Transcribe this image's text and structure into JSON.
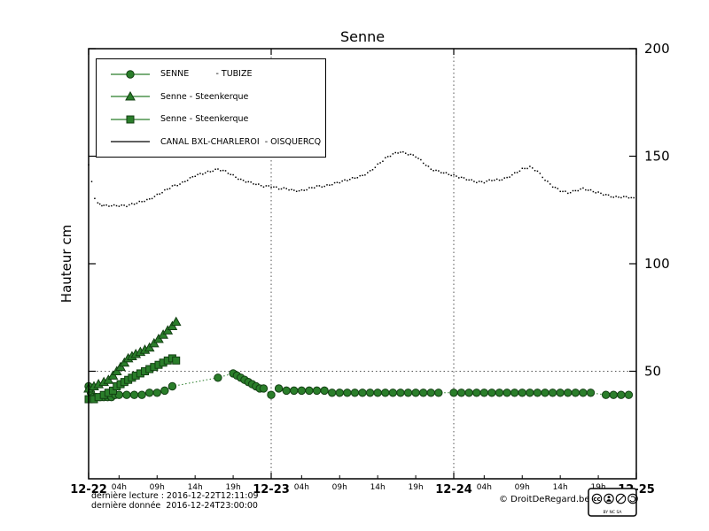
{
  "footer": {
    "last_reading": "dernière lecture : 2016-12-22T12:11:09",
    "last_data": "dernière donnée  2016-12-24T23:00:00",
    "copyright": "© DroitDeRegard.be",
    "license": {
      "label": "cc",
      "text": "BY NC SA"
    }
  },
  "chart_data": {
    "type": "line",
    "title": "Senne",
    "xlabel": "",
    "ylabel": "Hauteur cm",
    "ylim": [
      0,
      200
    ],
    "xlim_hours": [
      0,
      72
    ],
    "grid": {
      "vertical_at": [
        24,
        48
      ],
      "horizontal_at": [
        50
      ]
    },
    "y_ticks": [
      50,
      100,
      150,
      200
    ],
    "x_major_ticks": [
      {
        "t": 0,
        "label": "12-22"
      },
      {
        "t": 24,
        "label": "12-23"
      },
      {
        "t": 48,
        "label": "12-24"
      },
      {
        "t": 72,
        "label": "12-25"
      }
    ],
    "x_minor_ticks": [
      {
        "t": 4,
        "label": "04h"
      },
      {
        "t": 9,
        "label": "09h"
      },
      {
        "t": 14,
        "label": "14h"
      },
      {
        "t": 19,
        "label": "19h"
      },
      {
        "t": 28,
        "label": "04h"
      },
      {
        "t": 33,
        "label": "09h"
      },
      {
        "t": 38,
        "label": "14h"
      },
      {
        "t": 43,
        "label": "19h"
      },
      {
        "t": 52,
        "label": "04h"
      },
      {
        "t": 57,
        "label": "09h"
      },
      {
        "t": 62,
        "label": "14h"
      },
      {
        "t": 67,
        "label": "19h"
      }
    ],
    "colors": {
      "green_fill": "#2a7e2a",
      "green_edge": "#123f12",
      "black": "#000000",
      "grid": "#555555"
    },
    "series": [
      {
        "name": "SENNE - TUBIZE",
        "legend_label": "SENNE          - TUBIZE",
        "marker": "circle",
        "style": "dashed",
        "points": [
          [
            0,
            43
          ],
          [
            0.3,
            40
          ],
          [
            0.6,
            38
          ],
          [
            1,
            38
          ],
          [
            1.5,
            38
          ],
          [
            2,
            38
          ],
          [
            2.5,
            38
          ],
          [
            3,
            38
          ],
          [
            3.5,
            39
          ],
          [
            4,
            39
          ],
          [
            5,
            39
          ],
          [
            6,
            39
          ],
          [
            7,
            39
          ],
          [
            8,
            40
          ],
          [
            9,
            40
          ],
          [
            10,
            41
          ],
          [
            11,
            43
          ],
          [
            17,
            47
          ],
          [
            19,
            49
          ],
          [
            19.5,
            48
          ],
          [
            20,
            47
          ],
          [
            20.5,
            46
          ],
          [
            21,
            45
          ],
          [
            21.5,
            44
          ],
          [
            22,
            43
          ],
          [
            22.5,
            42
          ],
          [
            23,
            42
          ],
          [
            24,
            39
          ],
          [
            25,
            42
          ],
          [
            26,
            41
          ],
          [
            27,
            41
          ],
          [
            28,
            41
          ],
          [
            29,
            41
          ],
          [
            30,
            41
          ],
          [
            31,
            41
          ],
          [
            32,
            40
          ],
          [
            33,
            40
          ],
          [
            34,
            40
          ],
          [
            35,
            40
          ],
          [
            36,
            40
          ],
          [
            37,
            40
          ],
          [
            38,
            40
          ],
          [
            39,
            40
          ],
          [
            40,
            40
          ],
          [
            41,
            40
          ],
          [
            42,
            40
          ],
          [
            43,
            40
          ],
          [
            44,
            40
          ],
          [
            45,
            40
          ],
          [
            46,
            40
          ],
          [
            48,
            40
          ],
          [
            49,
            40
          ],
          [
            50,
            40
          ],
          [
            51,
            40
          ],
          [
            52,
            40
          ],
          [
            53,
            40
          ],
          [
            54,
            40
          ],
          [
            55,
            40
          ],
          [
            56,
            40
          ],
          [
            57,
            40
          ],
          [
            58,
            40
          ],
          [
            59,
            40
          ],
          [
            60,
            40
          ],
          [
            61,
            40
          ],
          [
            62,
            40
          ],
          [
            63,
            40
          ],
          [
            64,
            40
          ],
          [
            65,
            40
          ],
          [
            66,
            40
          ],
          [
            68,
            39
          ],
          [
            69,
            39
          ],
          [
            70,
            39
          ],
          [
            71,
            39
          ]
        ]
      },
      {
        "name": "Senne - Steenkerque",
        "legend_label": "Senne - Steenkerque",
        "marker": "triangle",
        "style": "dashed",
        "points": [
          [
            0,
            42
          ],
          [
            0.7,
            43
          ],
          [
            1.3,
            44
          ],
          [
            2,
            45
          ],
          [
            2.6,
            46
          ],
          [
            3.2,
            48
          ],
          [
            3.7,
            50
          ],
          [
            4.2,
            52
          ],
          [
            4.7,
            54
          ],
          [
            5.2,
            56
          ],
          [
            5.7,
            57
          ],
          [
            6.2,
            58
          ],
          [
            6.8,
            59
          ],
          [
            7.4,
            60
          ],
          [
            8,
            61
          ],
          [
            8.6,
            63
          ],
          [
            9.2,
            65
          ],
          [
            9.8,
            67
          ],
          [
            10.4,
            69
          ],
          [
            11,
            71
          ],
          [
            11.5,
            73
          ]
        ]
      },
      {
        "name": "Senne - Steenkerque",
        "legend_label": "Senne - Steenkerque",
        "marker": "square",
        "style": "dashed",
        "points": [
          [
            0,
            37
          ],
          [
            0.7,
            37
          ],
          [
            1.3,
            38
          ],
          [
            2,
            39
          ],
          [
            2.6,
            40
          ],
          [
            3.2,
            41
          ],
          [
            3.7,
            43
          ],
          [
            4.2,
            44
          ],
          [
            4.7,
            45
          ],
          [
            5.2,
            46
          ],
          [
            5.7,
            47
          ],
          [
            6.2,
            48
          ],
          [
            6.8,
            49
          ],
          [
            7.4,
            50
          ],
          [
            8,
            51
          ],
          [
            8.6,
            52
          ],
          [
            9.2,
            53
          ],
          [
            9.8,
            54
          ],
          [
            10.4,
            55
          ],
          [
            11,
            56
          ],
          [
            11.5,
            55
          ]
        ]
      },
      {
        "name": "CANAL BXL-CHARLEROI - OISQUERCQ",
        "legend_label": "CANAL BXL-CHARLEROI  - OISQUERCQ",
        "marker": "none",
        "style": "dots",
        "points": [
          [
            0,
            146
          ],
          [
            0.4,
            138
          ],
          [
            0.8,
            130
          ],
          [
            1.2,
            128
          ],
          [
            2,
            127
          ],
          [
            3,
            127
          ],
          [
            4,
            127
          ],
          [
            5,
            127
          ],
          [
            6,
            128
          ],
          [
            7,
            129
          ],
          [
            8,
            130
          ],
          [
            9,
            132
          ],
          [
            10,
            134
          ],
          [
            11,
            136
          ],
          [
            12,
            137
          ],
          [
            13,
            139
          ],
          [
            14,
            141
          ],
          [
            15,
            142
          ],
          [
            16,
            143
          ],
          [
            17,
            144
          ],
          [
            18,
            143
          ],
          [
            19,
            141
          ],
          [
            20,
            139
          ],
          [
            21,
            138
          ],
          [
            22,
            137
          ],
          [
            23,
            136
          ],
          [
            24,
            136
          ],
          [
            25,
            135
          ],
          [
            26,
            135
          ],
          [
            27,
            134
          ],
          [
            28,
            134
          ],
          [
            29,
            135
          ],
          [
            30,
            136
          ],
          [
            31,
            136
          ],
          [
            32,
            137
          ],
          [
            33,
            138
          ],
          [
            34,
            139
          ],
          [
            35,
            140
          ],
          [
            36,
            141
          ],
          [
            37,
            143
          ],
          [
            38,
            146
          ],
          [
            39,
            149
          ],
          [
            40,
            151
          ],
          [
            41,
            152
          ],
          [
            42,
            151
          ],
          [
            43,
            150
          ],
          [
            44,
            147
          ],
          [
            45,
            144
          ],
          [
            46,
            143
          ],
          [
            47,
            142
          ],
          [
            48,
            141
          ],
          [
            49,
            140
          ],
          [
            50,
            139
          ],
          [
            51,
            138
          ],
          [
            52,
            138
          ],
          [
            53,
            139
          ],
          [
            54,
            139
          ],
          [
            55,
            140
          ],
          [
            56,
            142
          ],
          [
            57,
            144
          ],
          [
            58,
            145
          ],
          [
            59,
            143
          ],
          [
            60,
            139
          ],
          [
            61,
            136
          ],
          [
            62,
            134
          ],
          [
            63,
            133
          ],
          [
            64,
            134
          ],
          [
            65,
            135
          ],
          [
            66,
            134
          ],
          [
            67,
            133
          ],
          [
            68,
            132
          ],
          [
            69,
            131
          ],
          [
            70,
            131
          ],
          [
            71,
            131
          ],
          [
            72,
            130
          ]
        ]
      }
    ]
  }
}
